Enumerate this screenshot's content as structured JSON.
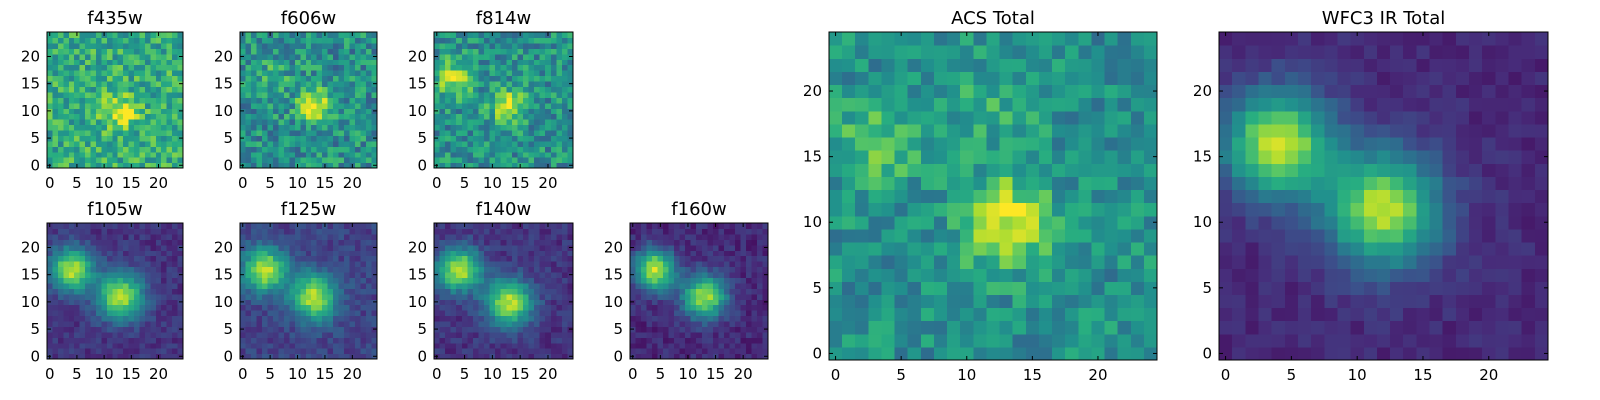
{
  "chart_data": [
    {
      "type": "heatmap",
      "title": "f435w",
      "grid_size": 25,
      "colormap": "viridis",
      "xlim": [
        0,
        24
      ],
      "ylim": [
        0,
        24
      ],
      "x_ticks": [
        "0",
        "5",
        "10",
        "15",
        "20"
      ],
      "y_ticks": [
        "0",
        "5",
        "10",
        "15",
        "20"
      ],
      "sources": [
        {
          "x": 13,
          "y": 10,
          "sigma": 2.2,
          "amp": 0.35
        }
      ],
      "background": 0.62,
      "noise": 0.38
    },
    {
      "type": "heatmap",
      "title": "f606w",
      "grid_size": 25,
      "colormap": "viridis",
      "xlim": [
        0,
        24
      ],
      "ylim": [
        0,
        24
      ],
      "x_ticks": [
        "0",
        "5",
        "10",
        "15",
        "20"
      ],
      "y_ticks": [
        "0",
        "5",
        "10",
        "15",
        "20"
      ],
      "sources": [
        {
          "x": 13,
          "y": 11,
          "sigma": 2.0,
          "amp": 0.5
        },
        {
          "x": 5,
          "y": 16,
          "sigma": 2.5,
          "amp": 0.15
        }
      ],
      "background": 0.5,
      "noise": 0.4
    },
    {
      "type": "heatmap",
      "title": "f814w",
      "grid_size": 25,
      "colormap": "viridis",
      "xlim": [
        0,
        24
      ],
      "ylim": [
        0,
        24
      ],
      "x_ticks": [
        "0",
        "5",
        "10",
        "15",
        "20"
      ],
      "y_ticks": [
        "0",
        "5",
        "10",
        "15",
        "20"
      ],
      "sources": [
        {
          "x": 13,
          "y": 11,
          "sigma": 2.2,
          "amp": 0.45
        },
        {
          "x": 3,
          "y": 16,
          "sigma": 2.3,
          "amp": 0.4
        }
      ],
      "background": 0.5,
      "noise": 0.38
    },
    {
      "type": "heatmap",
      "title": "f105w",
      "grid_size": 25,
      "colormap": "viridis",
      "xlim": [
        0,
        24
      ],
      "ylim": [
        0,
        24
      ],
      "x_ticks": [
        "0",
        "5",
        "10",
        "15",
        "20"
      ],
      "y_ticks": [
        "0",
        "5",
        "10",
        "15",
        "20"
      ],
      "sources": [
        {
          "x": 13,
          "y": 11,
          "sigma": 3.0,
          "amp": 0.75
        },
        {
          "x": 4,
          "y": 16,
          "sigma": 2.8,
          "amp": 0.75
        }
      ],
      "background": 0.15,
      "noise": 0.14
    },
    {
      "type": "heatmap",
      "title": "f125w",
      "grid_size": 25,
      "colormap": "viridis",
      "xlim": [
        0,
        24
      ],
      "ylim": [
        0,
        24
      ],
      "x_ticks": [
        "0",
        "5",
        "10",
        "15",
        "20"
      ],
      "y_ticks": [
        "0",
        "5",
        "10",
        "15",
        "20"
      ],
      "sources": [
        {
          "x": 13,
          "y": 11,
          "sigma": 3.0,
          "amp": 0.7
        },
        {
          "x": 4,
          "y": 16,
          "sigma": 2.8,
          "amp": 0.72
        }
      ],
      "background": 0.2,
      "noise": 0.16
    },
    {
      "type": "heatmap",
      "title": "f140w",
      "grid_size": 25,
      "colormap": "viridis",
      "xlim": [
        0,
        24
      ],
      "ylim": [
        0,
        24
      ],
      "x_ticks": [
        "0",
        "5",
        "10",
        "15",
        "20"
      ],
      "y_ticks": [
        "0",
        "5",
        "10",
        "15",
        "20"
      ],
      "sources": [
        {
          "x": 13,
          "y": 10,
          "sigma": 3.0,
          "amp": 0.75
        },
        {
          "x": 4,
          "y": 16,
          "sigma": 2.8,
          "amp": 0.75
        }
      ],
      "background": 0.15,
      "noise": 0.15
    },
    {
      "type": "heatmap",
      "title": "f160w",
      "grid_size": 25,
      "colormap": "viridis",
      "xlim": [
        0,
        24
      ],
      "ylim": [
        0,
        24
      ],
      "x_ticks": [
        "0",
        "5",
        "10",
        "15",
        "20"
      ],
      "y_ticks": [
        "0",
        "5",
        "10",
        "15",
        "20"
      ],
      "sources": [
        {
          "x": 13,
          "y": 11,
          "sigma": 2.8,
          "amp": 0.75
        },
        {
          "x": 4,
          "y": 16,
          "sigma": 2.6,
          "amp": 0.78
        }
      ],
      "background": 0.12,
      "noise": 0.15
    },
    {
      "type": "heatmap",
      "title": "ACS Total",
      "grid_size": 25,
      "colormap": "viridis",
      "xlim": [
        0,
        24
      ],
      "ylim": [
        0,
        24
      ],
      "x_ticks": [
        "0",
        "5",
        "10",
        "15",
        "20"
      ],
      "y_ticks": [
        "0",
        "5",
        "10",
        "15",
        "20"
      ],
      "sources": [
        {
          "x": 13,
          "y": 10,
          "sigma": 2.3,
          "amp": 0.48
        },
        {
          "x": 3,
          "y": 16,
          "sigma": 2.2,
          "amp": 0.25
        },
        {
          "x": 12,
          "y": 19,
          "sigma": 2.5,
          "amp": 0.12
        }
      ],
      "background": 0.5,
      "noise": 0.3
    },
    {
      "type": "heatmap",
      "title": "WFC3 IR Total",
      "grid_size": 25,
      "colormap": "viridis",
      "xlim": [
        0,
        24
      ],
      "ylim": [
        0,
        24
      ],
      "x_ticks": [
        "0",
        "5",
        "10",
        "15",
        "20"
      ],
      "y_ticks": [
        "0",
        "5",
        "10",
        "15",
        "20"
      ],
      "sources": [
        {
          "x": 12,
          "y": 11,
          "sigma": 3.0,
          "amp": 0.78
        },
        {
          "x": 4,
          "y": 16,
          "sigma": 2.8,
          "amp": 0.8
        }
      ],
      "background": 0.12,
      "noise": 0.1
    }
  ]
}
